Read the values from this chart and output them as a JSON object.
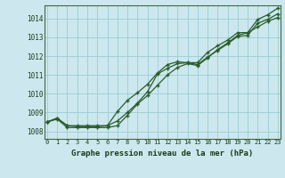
{
  "xlabel": "Graphe pression niveau de la mer (hPa)",
  "bg_color": "#cce8ee",
  "grid_color": "#99ccd4",
  "line_color": "#2a5c2a",
  "x_ticks": [
    0,
    1,
    2,
    3,
    4,
    5,
    6,
    7,
    8,
    9,
    10,
    11,
    12,
    13,
    14,
    15,
    16,
    17,
    18,
    19,
    20,
    21,
    22,
    23
  ],
  "y_ticks": [
    1008,
    1009,
    1010,
    1011,
    1012,
    1013,
    1014
  ],
  "ylim": [
    1007.6,
    1014.7
  ],
  "xlim": [
    -0.3,
    23.3
  ],
  "line1": [
    1008.5,
    1008.7,
    1008.3,
    1008.25,
    1008.25,
    1008.25,
    1008.3,
    1008.55,
    1009.0,
    1009.5,
    1010.1,
    1011.05,
    1011.35,
    1011.6,
    1011.65,
    1011.55,
    1011.95,
    1012.3,
    1012.65,
    1013.05,
    1013.1,
    1013.75,
    1013.95,
    1014.25
  ],
  "line2": [
    1008.5,
    1008.65,
    1008.2,
    1008.2,
    1008.2,
    1008.2,
    1008.2,
    1008.3,
    1008.85,
    1009.45,
    1009.9,
    1010.45,
    1011.0,
    1011.4,
    1011.6,
    1011.5,
    1011.9,
    1012.35,
    1012.7,
    1013.1,
    1013.25,
    1013.55,
    1013.85,
    1014.05
  ],
  "line3": [
    1008.5,
    1008.7,
    1008.3,
    1008.3,
    1008.3,
    1008.3,
    1008.3,
    1009.05,
    1009.65,
    1010.05,
    1010.5,
    1011.1,
    1011.55,
    1011.7,
    1011.65,
    1011.65,
    1012.2,
    1012.55,
    1012.85,
    1013.25,
    1013.25,
    1013.95,
    1014.2,
    1014.55
  ]
}
